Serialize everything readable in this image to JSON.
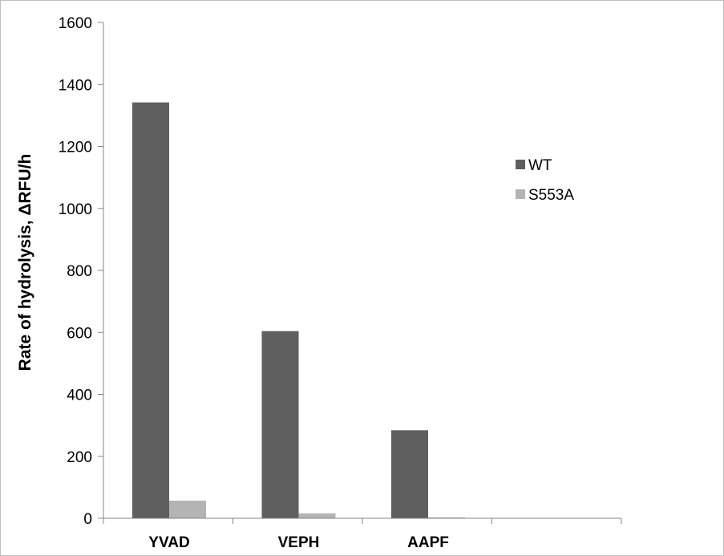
{
  "chart_data": {
    "type": "bar",
    "title": "",
    "xlabel": "",
    "ylabel": "Rate of hydrolysis,  ΔRFU/h",
    "categories": [
      "YVAD",
      "VEPH",
      "AAPF",
      ""
    ],
    "series": [
      {
        "name": "WT",
        "color": "#5f5f5f",
        "values": [
          1342,
          604,
          284,
          null
        ]
      },
      {
        "name": "S553A",
        "color": "#b4b4b4",
        "values": [
          57,
          16,
          3,
          null
        ]
      }
    ],
    "ylim": [
      0,
      1600
    ],
    "yticks": [
      0,
      200,
      400,
      600,
      800,
      1000,
      1200,
      1400,
      1600
    ],
    "grid": false,
    "legend_position": "right"
  }
}
